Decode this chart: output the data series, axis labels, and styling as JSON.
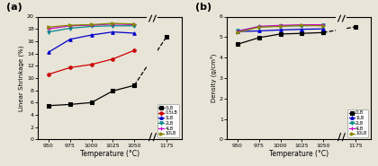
{
  "shrinkage": {
    "0LB": [
      5.5,
      5.7,
      6.0,
      7.9,
      8.8
    ],
    "0.5LB": [
      10.6,
      11.7,
      12.2,
      13.1,
      14.5
    ],
    "1LB": [
      14.2,
      16.3,
      17.0,
      17.5,
      17.3
    ],
    "2LB": [
      17.5,
      18.1,
      18.4,
      18.5,
      18.5
    ],
    "4LB": [
      18.0,
      18.5,
      18.6,
      18.8,
      18.7
    ],
    "10LB": [
      18.3,
      18.6,
      18.7,
      18.9,
      18.8
    ]
  },
  "shrinkage_extra": {
    "0LB": 16.7
  },
  "density": {
    "0LB": [
      4.65,
      4.97,
      5.15,
      5.18,
      5.22
    ],
    "1LB": [
      5.27,
      5.3,
      5.35,
      5.38,
      5.4
    ],
    "2LB": [
      5.3,
      5.5,
      5.55,
      5.55,
      5.58
    ],
    "4LB": [
      5.28,
      5.52,
      5.57,
      5.6,
      5.6
    ],
    "10LB": [
      5.23,
      5.48,
      5.52,
      5.57,
      5.55
    ]
  },
  "density_extra": {
    "0LB": 5.5
  },
  "colors": {
    "0LB": "#000000",
    "0.5LB": "#cc0000",
    "1LB": "#0000cc",
    "2LB": "#008888",
    "4LB": "#cc00cc",
    "10LB": "#888800"
  },
  "markers": {
    "0LB": "s",
    "0.5LB": "o",
    "1LB": "^",
    "2LB": "v",
    "4LB": "+",
    "10LB": ">"
  },
  "shrinkage_ylim": [
    0,
    20
  ],
  "shrinkage_yticks": [
    0,
    2,
    4,
    6,
    8,
    10,
    12,
    14,
    16,
    18,
    20
  ],
  "density_ylim": [
    0,
    6
  ],
  "density_yticks": [
    0,
    1,
    2,
    3,
    4,
    5,
    6
  ],
  "xlabel": "Temperature (°C)",
  "ylabel_a": "Linear Shrinkage (%)",
  "ylabel_b": "Density (g/cm³)"
}
